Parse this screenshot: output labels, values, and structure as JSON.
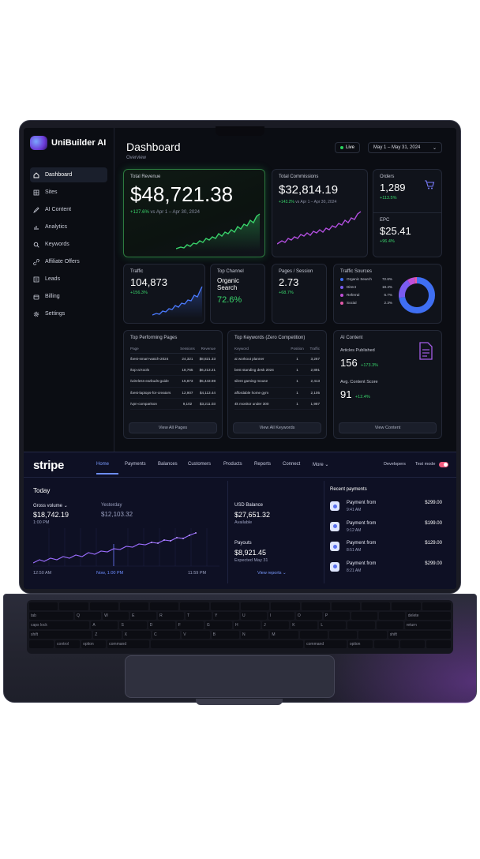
{
  "unibuilder": {
    "brand": "UniBuilder AI",
    "nav": [
      {
        "label": "Dashboard",
        "icon": "home-icon",
        "active": true
      },
      {
        "label": "Sites",
        "icon": "grid-icon"
      },
      {
        "label": "AI Content",
        "icon": "pen-icon"
      },
      {
        "label": "Analytics",
        "icon": "bar-chart-icon"
      },
      {
        "label": "Keywords",
        "icon": "search-icon"
      },
      {
        "label": "Affiliate Offers",
        "icon": "link-icon"
      },
      {
        "label": "Leads",
        "icon": "list-icon"
      },
      {
        "label": "Billing",
        "icon": "card-icon"
      },
      {
        "label": "Settings",
        "icon": "gear-icon"
      }
    ],
    "title": "Dashboard",
    "subtitle": "Overview",
    "live_label": "Live",
    "date_range": "May 1 – May 31, 2024",
    "total_revenue": {
      "label": "Total Revenue",
      "value": "$48,721.38",
      "change": "+127.6%",
      "compare": "vs Apr 1 – Apr 30, 2024"
    },
    "total_commissions": {
      "label": "Total Commissions",
      "value": "$32,814.19",
      "change": "+143.2%",
      "compare": "vs Apr 1 – Apr 30, 2024"
    },
    "orders": {
      "label": "Orders",
      "value": "1,289",
      "change": "+113.5%"
    },
    "epc": {
      "label": "EPC",
      "value": "$25.41",
      "change": "+96.4%"
    },
    "traffic": {
      "label": "Traffic",
      "value": "104,873",
      "change": "+156.3%"
    },
    "top_channel": {
      "label": "Top Channel",
      "name": "Organic Search",
      "value": "72.6%"
    },
    "pages_session": {
      "label": "Pages / Session",
      "value": "2.73",
      "change": "+68.7%"
    },
    "traffic_sources": {
      "label": "Traffic Sources",
      "items": [
        {
          "name": "Organic Search",
          "value": "72.6%",
          "pct": 72.6,
          "color": "#3f6ff2"
        },
        {
          "name": "Direct",
          "value": "18.4%",
          "pct": 18.4,
          "color": "#7a5cf0"
        },
        {
          "name": "Referral",
          "value": "6.7%",
          "pct": 6.7,
          "color": "#c24fd8"
        },
        {
          "name": "Social",
          "value": "2.3%",
          "pct": 2.3,
          "color": "#e25aa8"
        }
      ]
    },
    "top_pages": {
      "title": "Top Performing Pages",
      "headers": [
        "Page",
        "Sessions",
        "Revenue"
      ],
      "rows": [
        [
          "/best-smart-watch-2024",
          "24,321",
          "$8,821.33"
        ],
        [
          "/top-ai-tools",
          "18,765",
          "$6,213.21"
        ],
        [
          "/wireless-earbuds-guide",
          "15,873",
          "$5,443.98"
        ],
        [
          "/best-laptops-for-creators",
          "12,907",
          "$4,113.44"
        ],
        [
          "/vpn-comparison",
          "9,102",
          "$3,211.03"
        ]
      ],
      "button": "View All Pages"
    },
    "top_keywords": {
      "title": "Top Keywords (Zero Competition)",
      "headers": [
        "Keyword",
        "Position",
        "Traffic"
      ],
      "rows": [
        [
          "ai workout planner",
          "1",
          "3,267"
        ],
        [
          "best standing desk 2024",
          "1",
          "2,891"
        ],
        [
          "silent gaming mouse",
          "1",
          "2,413"
        ],
        [
          "affordable home gym",
          "1",
          "2,105"
        ],
        [
          "4k monitor under 300",
          "1",
          "1,987"
        ]
      ],
      "button": "View All Keywords"
    },
    "ai_content": {
      "title": "AI Content",
      "articles_label": "Articles Published",
      "articles_value": "156",
      "articles_change": "+173.3%",
      "score_label": "Avg. Content Score",
      "score_value": "91",
      "score_change": "+12.4%",
      "button": "View Content"
    }
  },
  "stripe": {
    "brand": "stripe",
    "tabs": [
      "Home",
      "Payments",
      "Balances",
      "Customers",
      "Products",
      "Reports",
      "Connect",
      "More"
    ],
    "developers": "Developers",
    "test_mode": "Test mode",
    "today": "Today",
    "gross_volume_label": "Gross volume",
    "gross_volume": "$18,742.19",
    "gross_time": "1:00 PM",
    "yesterday_label": "Yesterday",
    "yesterday_value": "$12,103.32",
    "axis": [
      "12:50 AM",
      "Now, 1:00 PM",
      "11:59 PM"
    ],
    "balance_label": "USD  Balance",
    "balance_value": "$27,651.32",
    "balance_sub": "Available",
    "payouts_label": "Payouts",
    "payouts_value": "$8,921.45",
    "payouts_sub": "Expected May 31",
    "view_reports": "View reports",
    "recent_title": "Recent payments",
    "payments": [
      {
        "label": "Payment from",
        "time": "9:41 AM",
        "amount": "$299.00"
      },
      {
        "label": "Payment from",
        "time": "9:12 AM",
        "amount": "$199.00"
      },
      {
        "label": "Payment from",
        "time": "8:51 AM",
        "amount": "$129.00"
      },
      {
        "label": "Payment from",
        "time": "8:21 AM",
        "amount": "$299.00"
      }
    ]
  },
  "keyboard": {
    "keys": [
      "tab",
      "caps lock",
      "shift",
      "control",
      "option",
      "command",
      "command",
      "option",
      "delete",
      "return",
      "shift",
      "Q",
      "W",
      "E",
      "R",
      "T",
      "Y",
      "U",
      "I",
      "O",
      "P",
      "A",
      "S",
      "D",
      "F",
      "G",
      "H",
      "J",
      "K",
      "L",
      "Z",
      "X",
      "C",
      "V",
      "B",
      "N",
      "M"
    ]
  }
}
